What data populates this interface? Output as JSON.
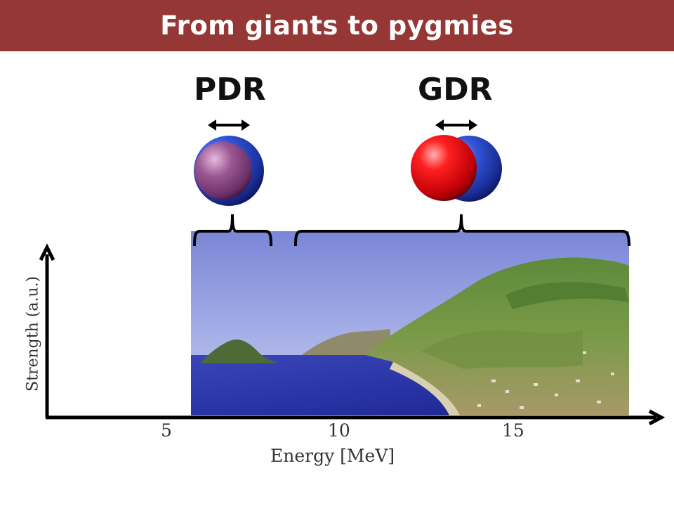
{
  "title": "From giants to pygmies",
  "modes": {
    "pdr": {
      "label": "PDR"
    },
    "gdr": {
      "label": "GDR"
    }
  },
  "axes": {
    "xlabel": "Energy [MeV]",
    "ylabel": "Strength (a.u.)",
    "xticks": [
      "5",
      "10",
      "15"
    ]
  },
  "colors": {
    "title_bar": "#953735",
    "proton_sphere": "#e00010",
    "neutron_sphere": "#1f3fb0",
    "pdr_core": "#8e4a86"
  },
  "picture": {
    "subject": "coastal-island-landscape"
  }
}
